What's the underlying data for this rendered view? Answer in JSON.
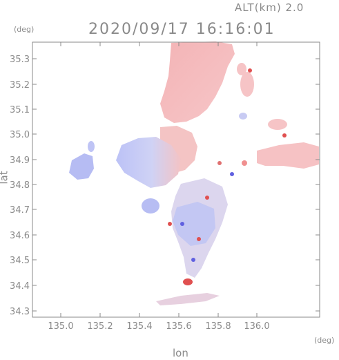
{
  "header": {
    "altitude": "ALT(km) 2.0",
    "timestamp": "2020/09/17 16:16:01"
  },
  "axes": {
    "y_unit": "(deg)",
    "x_unit": "(deg)",
    "xlabel": "lon",
    "ylabel": "lat",
    "xticks": [
      "135.0",
      "135.2",
      "135.4",
      "135.6",
      "135.8",
      "136.0"
    ],
    "yticks": [
      "35.3",
      "35.2",
      "35.1",
      "35.0",
      "34.9",
      "34.8",
      "34.7",
      "34.6",
      "34.5",
      "34.4",
      "34.3"
    ]
  },
  "colors": {
    "approaching": "#b9bff5",
    "receding": "#f5b8b8",
    "strong_red": "#e05050",
    "strong_blue": "#6060e0",
    "frame": "#888888"
  }
}
